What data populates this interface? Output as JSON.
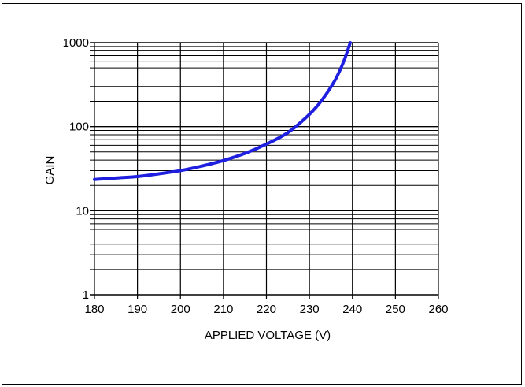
{
  "chart_data": {
    "type": "line",
    "title": "",
    "xlabel": "APPLIED VOLTAGE (V)",
    "ylabel": "GAIN",
    "xlim": [
      180,
      260
    ],
    "ylim": [
      1,
      1000
    ],
    "yscale": "log",
    "grid": true,
    "legend": "none",
    "x_ticks": [
      180,
      190,
      200,
      210,
      220,
      230,
      240,
      250,
      260
    ],
    "y_ticks": [
      1,
      10,
      100,
      1000
    ],
    "x_tick_labels": [
      "180",
      "190",
      "200",
      "210",
      "220",
      "230",
      "240",
      "250",
      "260"
    ],
    "y_tick_labels": [
      "1",
      "10",
      "100",
      "1000"
    ],
    "series": [
      {
        "color": "#1f1fe0",
        "x": [
          180,
          185,
          190,
          195,
          200,
          205,
          210,
          215,
          220,
          225,
          230,
          233,
          236,
          238,
          239.5
        ],
        "y": [
          23.5,
          24.5,
          25.5,
          27.5,
          30,
          34,
          39.5,
          48,
          62,
          85,
          140,
          210,
          360,
          600,
          1000
        ]
      }
    ]
  }
}
